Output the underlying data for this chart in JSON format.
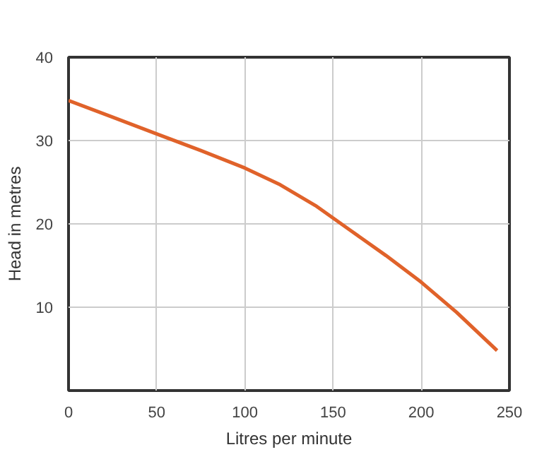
{
  "chart_data": {
    "type": "line",
    "xlabel": "Litres per minute",
    "ylabel": "Head in metres",
    "x": [
      0,
      25,
      50,
      75,
      100,
      120,
      140,
      160,
      180,
      200,
      220,
      243
    ],
    "series": [
      {
        "color": "#e0622a",
        "values": [
          34.8,
          32.8,
          30.8,
          28.8,
          26.7,
          24.7,
          22.2,
          19.2,
          16.2,
          13.0,
          9.4,
          4.8
        ]
      }
    ],
    "xlim": [
      0,
      250
    ],
    "ylim": [
      0,
      40
    ],
    "xticks": [
      0,
      50,
      100,
      150,
      200,
      250
    ],
    "yticks": [
      10,
      20,
      30,
      40
    ],
    "grid": true,
    "marker": "none",
    "line_style": "solid"
  }
}
